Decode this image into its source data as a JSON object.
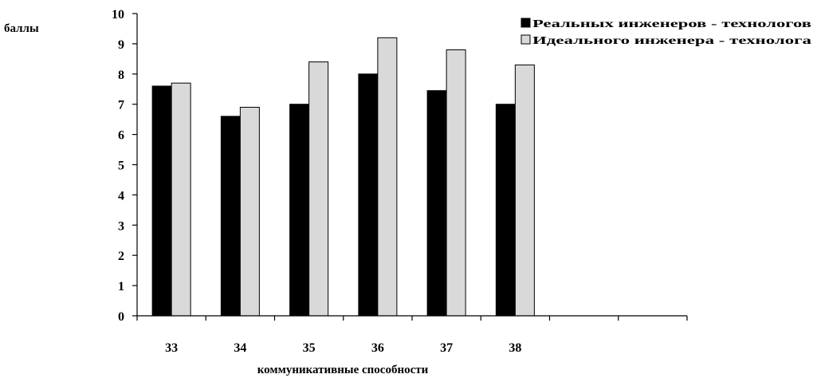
{
  "chart_data": {
    "type": "bar",
    "ylabel": "баллы",
    "xlabel": "коммуникативные способности",
    "ylim": [
      0,
      10
    ],
    "yticks": [
      0,
      1,
      2,
      3,
      4,
      5,
      6,
      7,
      8,
      9,
      10
    ],
    "categories": [
      "33",
      "34",
      "35",
      "36",
      "37",
      "38",
      "",
      ""
    ],
    "series": [
      {
        "name": "Реальных инженеров - технологов",
        "color": "#000000",
        "values": [
          7.6,
          6.6,
          7.0,
          8.0,
          7.45,
          7.0,
          null,
          null
        ]
      },
      {
        "name": "Идеального инженера - технолога",
        "color": "#d9d9d9",
        "values": [
          7.7,
          6.9,
          8.4,
          9.2,
          8.8,
          8.3,
          null,
          null
        ]
      }
    ],
    "legend_position": "top-right",
    "grid": false
  }
}
